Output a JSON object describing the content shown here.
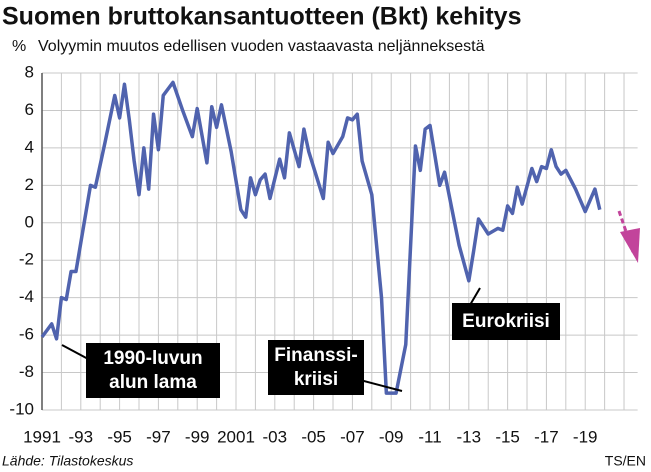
{
  "chart_data": {
    "type": "line",
    "title": "Suomen bruttokansantuotteen (Bkt) kehitys",
    "y_unit": "%",
    "subtitle": "Volyymin muutos edellisen vuoden vastaavasta neljänneksestä",
    "source": "Lähde: Tilastokeskus",
    "credit": "TS/EN",
    "xlim": [
      1991,
      2021.7
    ],
    "ylim": [
      -10,
      8
    ],
    "yticks": [
      -10,
      -8,
      -6,
      -4,
      -2,
      0,
      2,
      4,
      6,
      8
    ],
    "xticks": [
      1991,
      {
        "value": 1993,
        "label": "-93"
      },
      {
        "value": 1995,
        "label": "-95"
      },
      {
        "value": 1997,
        "label": "-97"
      },
      {
        "value": 1999,
        "label": "-99"
      },
      2001,
      {
        "value": 2003,
        "label": "-03"
      },
      {
        "value": 2005,
        "label": "-05"
      },
      {
        "value": 2007,
        "label": "-07"
      },
      {
        "value": 2009,
        "label": "-09"
      },
      {
        "value": 2011,
        "label": "-11"
      },
      {
        "value": 2013,
        "label": "-13"
      },
      {
        "value": 2015,
        "label": "-15"
      },
      {
        "value": 2017,
        "label": "-17"
      },
      {
        "value": 2019,
        "label": "-19"
      }
    ],
    "x_gridlines": [
      1991,
      1992,
      1993,
      1994,
      1995,
      1996,
      1997,
      1998,
      1999,
      2000,
      2001,
      2002,
      2003,
      2004,
      2005,
      2006,
      2007,
      2008,
      2009,
      2010,
      2011,
      2012,
      2013,
      2014,
      2015,
      2016,
      2017,
      2018,
      2019,
      2020,
      2021
    ],
    "grid": true,
    "series": [
      {
        "color": "#5063ae",
        "x": [
          1991.0,
          1991.5,
          1991.75,
          1992.0,
          1992.25,
          1992.5,
          1992.75,
          1993.5,
          1993.75,
          1994.25,
          1994.75,
          1995.0,
          1995.25,
          1995.5,
          1995.75,
          1996.0,
          1996.25,
          1996.5,
          1996.75,
          1997.0,
          1997.25,
          1997.75,
          1998.25,
          1998.75,
          1999.0,
          1999.5,
          1999.75,
          2000.0,
          2000.25,
          2000.75,
          2001.25,
          2001.5,
          2001.75,
          2002.0,
          2002.25,
          2002.5,
          2002.75,
          2003.25,
          2003.5,
          2003.75,
          2004.25,
          2004.5,
          2004.75,
          2005.5,
          2005.75,
          2006.0,
          2006.5,
          2006.75,
          2007.0,
          2007.25,
          2007.5,
          2008.0,
          2008.5,
          2008.75,
          2009.25,
          2009.75,
          2010.25,
          2010.5,
          2010.75,
          2011.0,
          2011.5,
          2011.75,
          2012.5,
          2013.0,
          2013.25,
          2013.5,
          2014.0,
          2014.5,
          2014.75,
          2015.0,
          2015.25,
          2015.5,
          2015.75,
          2016.25,
          2016.5,
          2016.75,
          2017.0,
          2017.25,
          2017.5,
          2017.75,
          2018.0,
          2018.5,
          2019.0,
          2019.5,
          2019.75
        ],
        "values": [
          -6.1,
          -5.4,
          -6.2,
          -4.0,
          -4.1,
          -2.6,
          -2.6,
          2.0,
          1.9,
          4.3,
          6.8,
          5.6,
          7.4,
          5.5,
          3.3,
          1.5,
          4.0,
          1.8,
          5.8,
          3.9,
          6.8,
          7.5,
          6.0,
          4.6,
          6.1,
          3.2,
          6.2,
          5.1,
          6.3,
          3.8,
          0.7,
          0.3,
          2.4,
          1.5,
          2.3,
          2.6,
          1.3,
          3.4,
          2.4,
          4.8,
          3.0,
          5.0,
          3.8,
          1.3,
          4.3,
          3.7,
          4.6,
          5.6,
          5.5,
          5.8,
          3.3,
          1.5,
          -4.0,
          -9.1,
          -9.1,
          -6.5,
          4.1,
          2.8,
          5.0,
          5.2,
          2.0,
          2.7,
          -1.2,
          -3.1,
          -1.5,
          0.2,
          -0.6,
          -0.3,
          -0.4,
          0.9,
          0.5,
          1.9,
          1.0,
          2.9,
          2.2,
          3.0,
          2.9,
          3.9,
          3.0,
          2.6,
          2.8,
          1.8,
          0.6,
          1.8,
          0.7
        ]
      }
    ],
    "annotations": [
      {
        "lines": [
          "1990-luvun",
          "alun lama"
        ]
      },
      {
        "lines": [
          "Finanssi-",
          "kriisi"
        ]
      },
      {
        "lines": [
          "Eurokriisi"
        ]
      }
    ]
  }
}
